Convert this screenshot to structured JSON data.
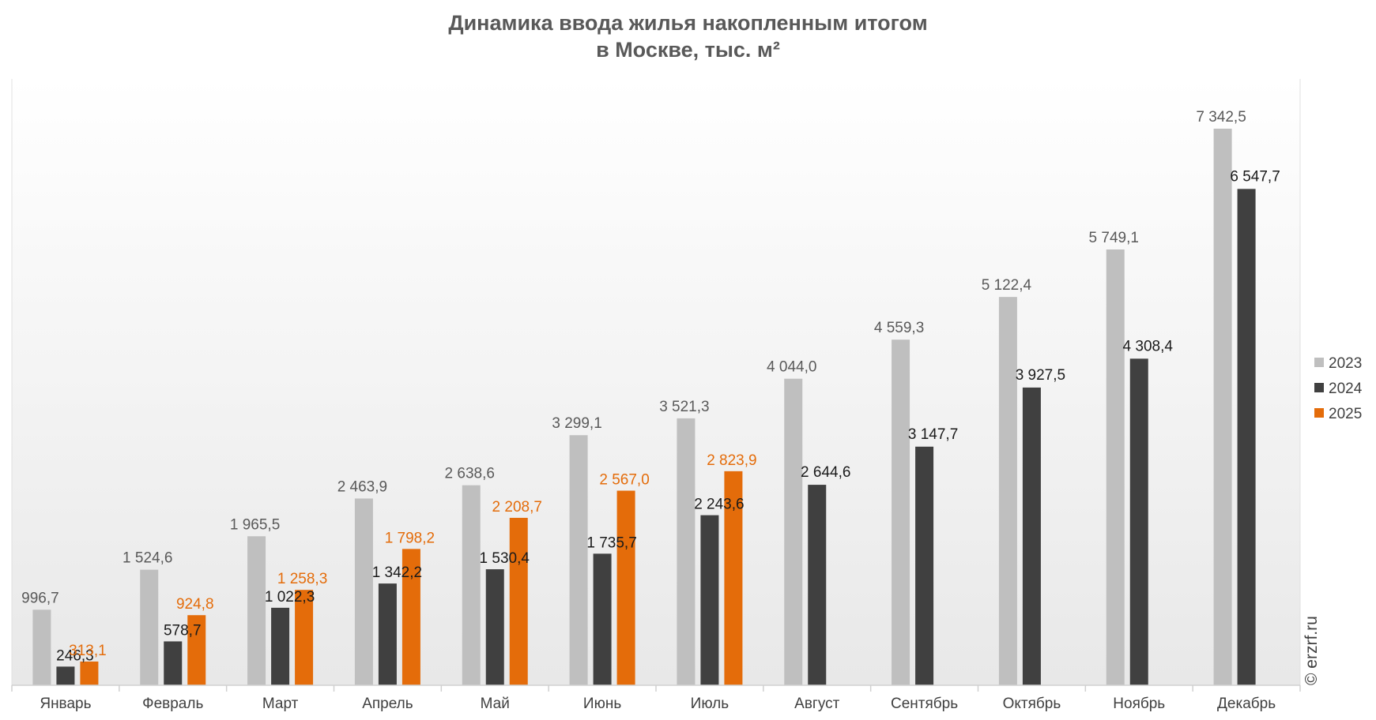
{
  "title_line1": "Динамика ввода жилья накопленным итогом",
  "title_line2": "в Москве, тыс. м²",
  "watermark": "© erzrf.ru",
  "colors": {
    "2023": "#bfbfbf",
    "2024": "#404040",
    "2025": "#e46c0a"
  },
  "chart_data": {
    "type": "bar",
    "title": "Динамика ввода жилья накопленным итогом в Москве, тыс. м²",
    "categories": [
      "Январь",
      "Февраль",
      "Март",
      "Апрель",
      "Май",
      "Июнь",
      "Июль",
      "Август",
      "Сентябрь",
      "Октябрь",
      "Ноябрь",
      "Декабрь"
    ],
    "series": [
      {
        "name": "2023",
        "values": [
          996.7,
          1524.6,
          1965.5,
          2463.9,
          2638.6,
          3299.1,
          3521.3,
          4044.0,
          4559.3,
          5122.4,
          5749.1,
          7342.5
        ],
        "labels": [
          "996,7",
          "1 524,6",
          "1 965,5",
          "2 463,9",
          "2 638,6",
          "3 299,1",
          "3 521,3",
          "4 044,0",
          "4 559,3",
          "5 122,4",
          "5 749,1",
          "7 342,5"
        ]
      },
      {
        "name": "2024",
        "values": [
          246.3,
          578.7,
          1022.3,
          1342.2,
          1530.4,
          1735.7,
          2243.6,
          2644.6,
          3147.7,
          3927.5,
          4308.4,
          6547.7
        ],
        "labels": [
          "246,3",
          "578,7",
          "1 022,3",
          "1 342,2",
          "1 530,4",
          "1 735,7",
          "2 243,6",
          "2 644,6",
          "3 147,7",
          "3 927,5",
          "4 308,4",
          "6 547,7"
        ]
      },
      {
        "name": "2025",
        "values": [
          313.1,
          924.8,
          1258.3,
          1798.2,
          2208.7,
          2567.0,
          2823.9,
          null,
          null,
          null,
          null,
          null
        ],
        "labels": [
          "313,1",
          "924,8",
          "1 258,3",
          "1 798,2",
          "2 208,7",
          "2 567,0",
          "2 823,9",
          null,
          null,
          null,
          null,
          null
        ]
      }
    ],
    "ylim": [
      0,
      8000
    ],
    "legend_position": "right",
    "grid": false
  }
}
